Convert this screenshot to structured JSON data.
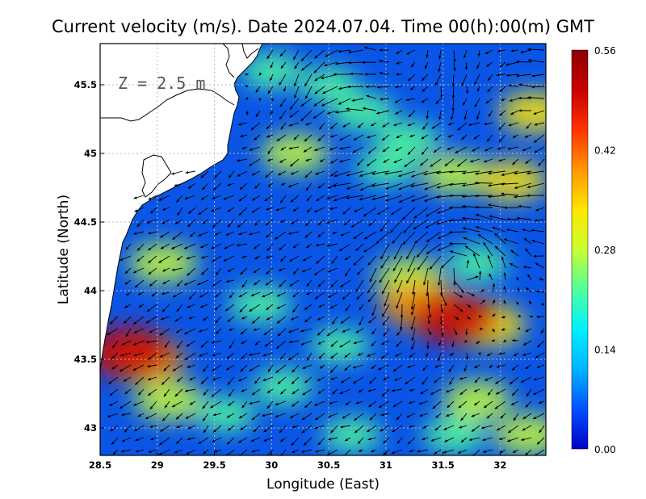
{
  "chart_data": {
    "type": "heatmap",
    "title": "Current velocity (m/s). Date 2024.07.04. Time 00(h):00(m) GMT",
    "xlabel": "Longitude (East)",
    "ylabel": "Latitude (North)",
    "annotation": "Z = 2.5 m",
    "xlim": [
      28.5,
      32.4
    ],
    "ylim": [
      42.8,
      45.8
    ],
    "x_ticks": [
      "28.5",
      "29",
      "29.5",
      "30",
      "30.5",
      "31",
      "31.5",
      "32"
    ],
    "y_ticks": [
      "43",
      "43.5",
      "44",
      "44.5",
      "45",
      "45.5"
    ],
    "grid": true,
    "colorbar": {
      "min": 0.0,
      "max": 0.56,
      "tick_labels": [
        "0.00",
        "0.14",
        "0.28",
        "0.42",
        "0.56"
      ],
      "colormap": [
        "#0000c8",
        "#0050ff",
        "#00b4ff",
        "#00f0ff",
        "#50ff9a",
        "#c8ff32",
        "#ffe600",
        "#ff9600",
        "#ff3200",
        "#c80000",
        "#8b0000"
      ]
    },
    "land_color": "#ffffff",
    "sea_background": "#0a55e6",
    "speed_features": [
      {
        "lon": 28.75,
        "lat": 43.55,
        "speed": 0.5
      },
      {
        "lon": 28.9,
        "lat": 43.5,
        "speed": 0.4
      },
      {
        "lon": 29.05,
        "lat": 44.2,
        "speed": 0.3
      },
      {
        "lon": 29.1,
        "lat": 43.2,
        "speed": 0.3
      },
      {
        "lon": 31.6,
        "lat": 43.8,
        "speed": 0.5
      },
      {
        "lon": 31.3,
        "lat": 43.9,
        "speed": 0.42
      },
      {
        "lon": 31.9,
        "lat": 43.75,
        "speed": 0.35
      },
      {
        "lon": 31.2,
        "lat": 44.1,
        "speed": 0.3
      },
      {
        "lon": 31.8,
        "lat": 44.2,
        "speed": 0.22
      },
      {
        "lon": 32.1,
        "lat": 44.8,
        "speed": 0.32
      },
      {
        "lon": 31.6,
        "lat": 44.85,
        "speed": 0.28
      },
      {
        "lon": 31.0,
        "lat": 44.9,
        "speed": 0.22
      },
      {
        "lon": 30.8,
        "lat": 45.3,
        "speed": 0.25
      },
      {
        "lon": 30.2,
        "lat": 45.0,
        "speed": 0.28
      },
      {
        "lon": 31.2,
        "lat": 45.1,
        "speed": 0.24
      },
      {
        "lon": 30.5,
        "lat": 45.5,
        "speed": 0.2
      },
      {
        "lon": 30.0,
        "lat": 45.6,
        "speed": 0.22
      },
      {
        "lon": 32.3,
        "lat": 45.3,
        "speed": 0.32
      },
      {
        "lon": 31.8,
        "lat": 43.2,
        "speed": 0.3
      },
      {
        "lon": 31.6,
        "lat": 42.95,
        "speed": 0.24
      },
      {
        "lon": 32.25,
        "lat": 42.95,
        "speed": 0.3
      },
      {
        "lon": 30.1,
        "lat": 43.3,
        "speed": 0.22
      },
      {
        "lon": 29.6,
        "lat": 43.1,
        "speed": 0.2
      },
      {
        "lon": 30.6,
        "lat": 43.6,
        "speed": 0.2
      },
      {
        "lon": 29.9,
        "lat": 43.9,
        "speed": 0.24
      },
      {
        "lon": 30.7,
        "lat": 42.95,
        "speed": 0.2
      }
    ],
    "eddy": {
      "center_lon": 31.65,
      "center_lat": 44.2,
      "rotation": "counterclockwise"
    }
  }
}
